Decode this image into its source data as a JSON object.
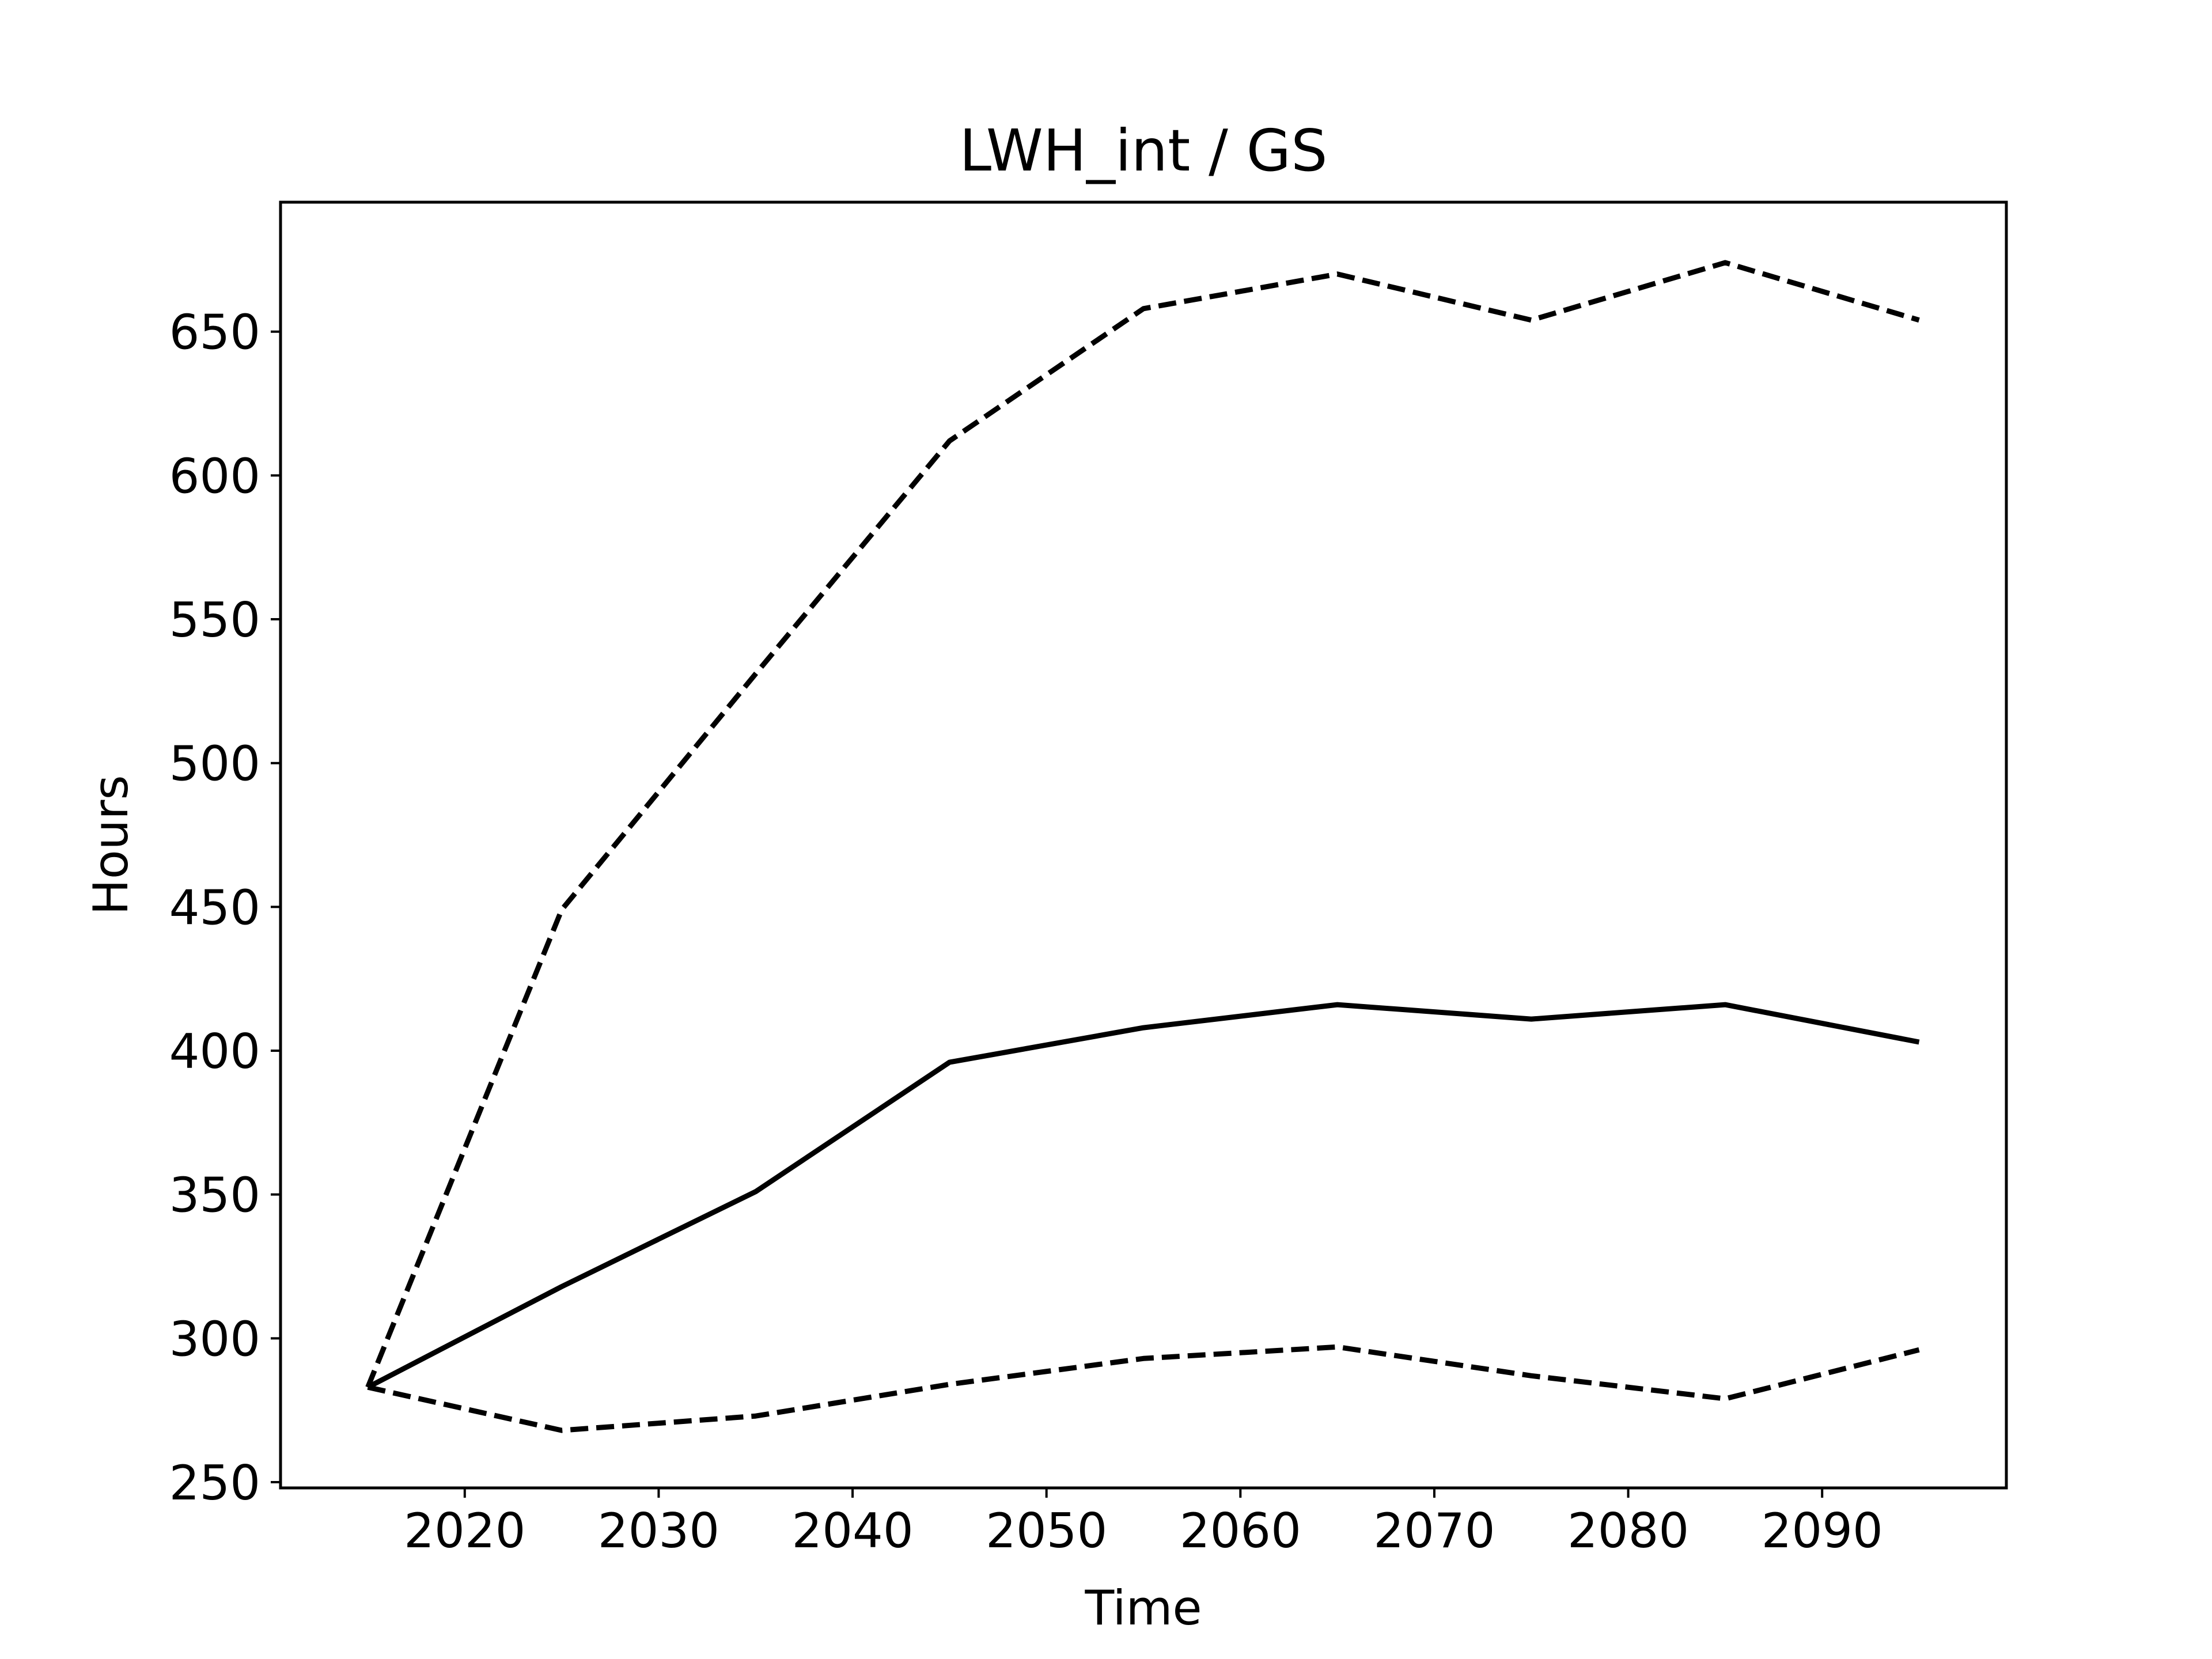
{
  "chart_data": {
    "type": "line",
    "title": "LWH_int / GS",
    "xlabel": "Time",
    "ylabel": "Hours",
    "xlim": [
      2010.5,
      2099.5
    ],
    "ylim": [
      248,
      695
    ],
    "xticks": [
      2020,
      2030,
      2040,
      2050,
      2060,
      2070,
      2080,
      2090
    ],
    "yticks": [
      250,
      300,
      350,
      400,
      450,
      500,
      550,
      600,
      650
    ],
    "grid": false,
    "legend": "none",
    "x": [
      2015,
      2025,
      2035,
      2045,
      2055,
      2065,
      2075,
      2085,
      2095
    ],
    "series": [
      {
        "style": "solid",
        "color": "#000000",
        "values": [
          283,
          318,
          351,
          396,
          408,
          416,
          411,
          416,
          403
        ]
      },
      {
        "style": "dashed",
        "color": "#000000",
        "values": [
          283,
          449,
          531,
          612,
          658,
          670,
          654,
          674,
          654
        ]
      },
      {
        "style": "dashed",
        "color": "#000000",
        "values": [
          283,
          268,
          273,
          284,
          293,
          297,
          287,
          279,
          296
        ]
      }
    ]
  }
}
